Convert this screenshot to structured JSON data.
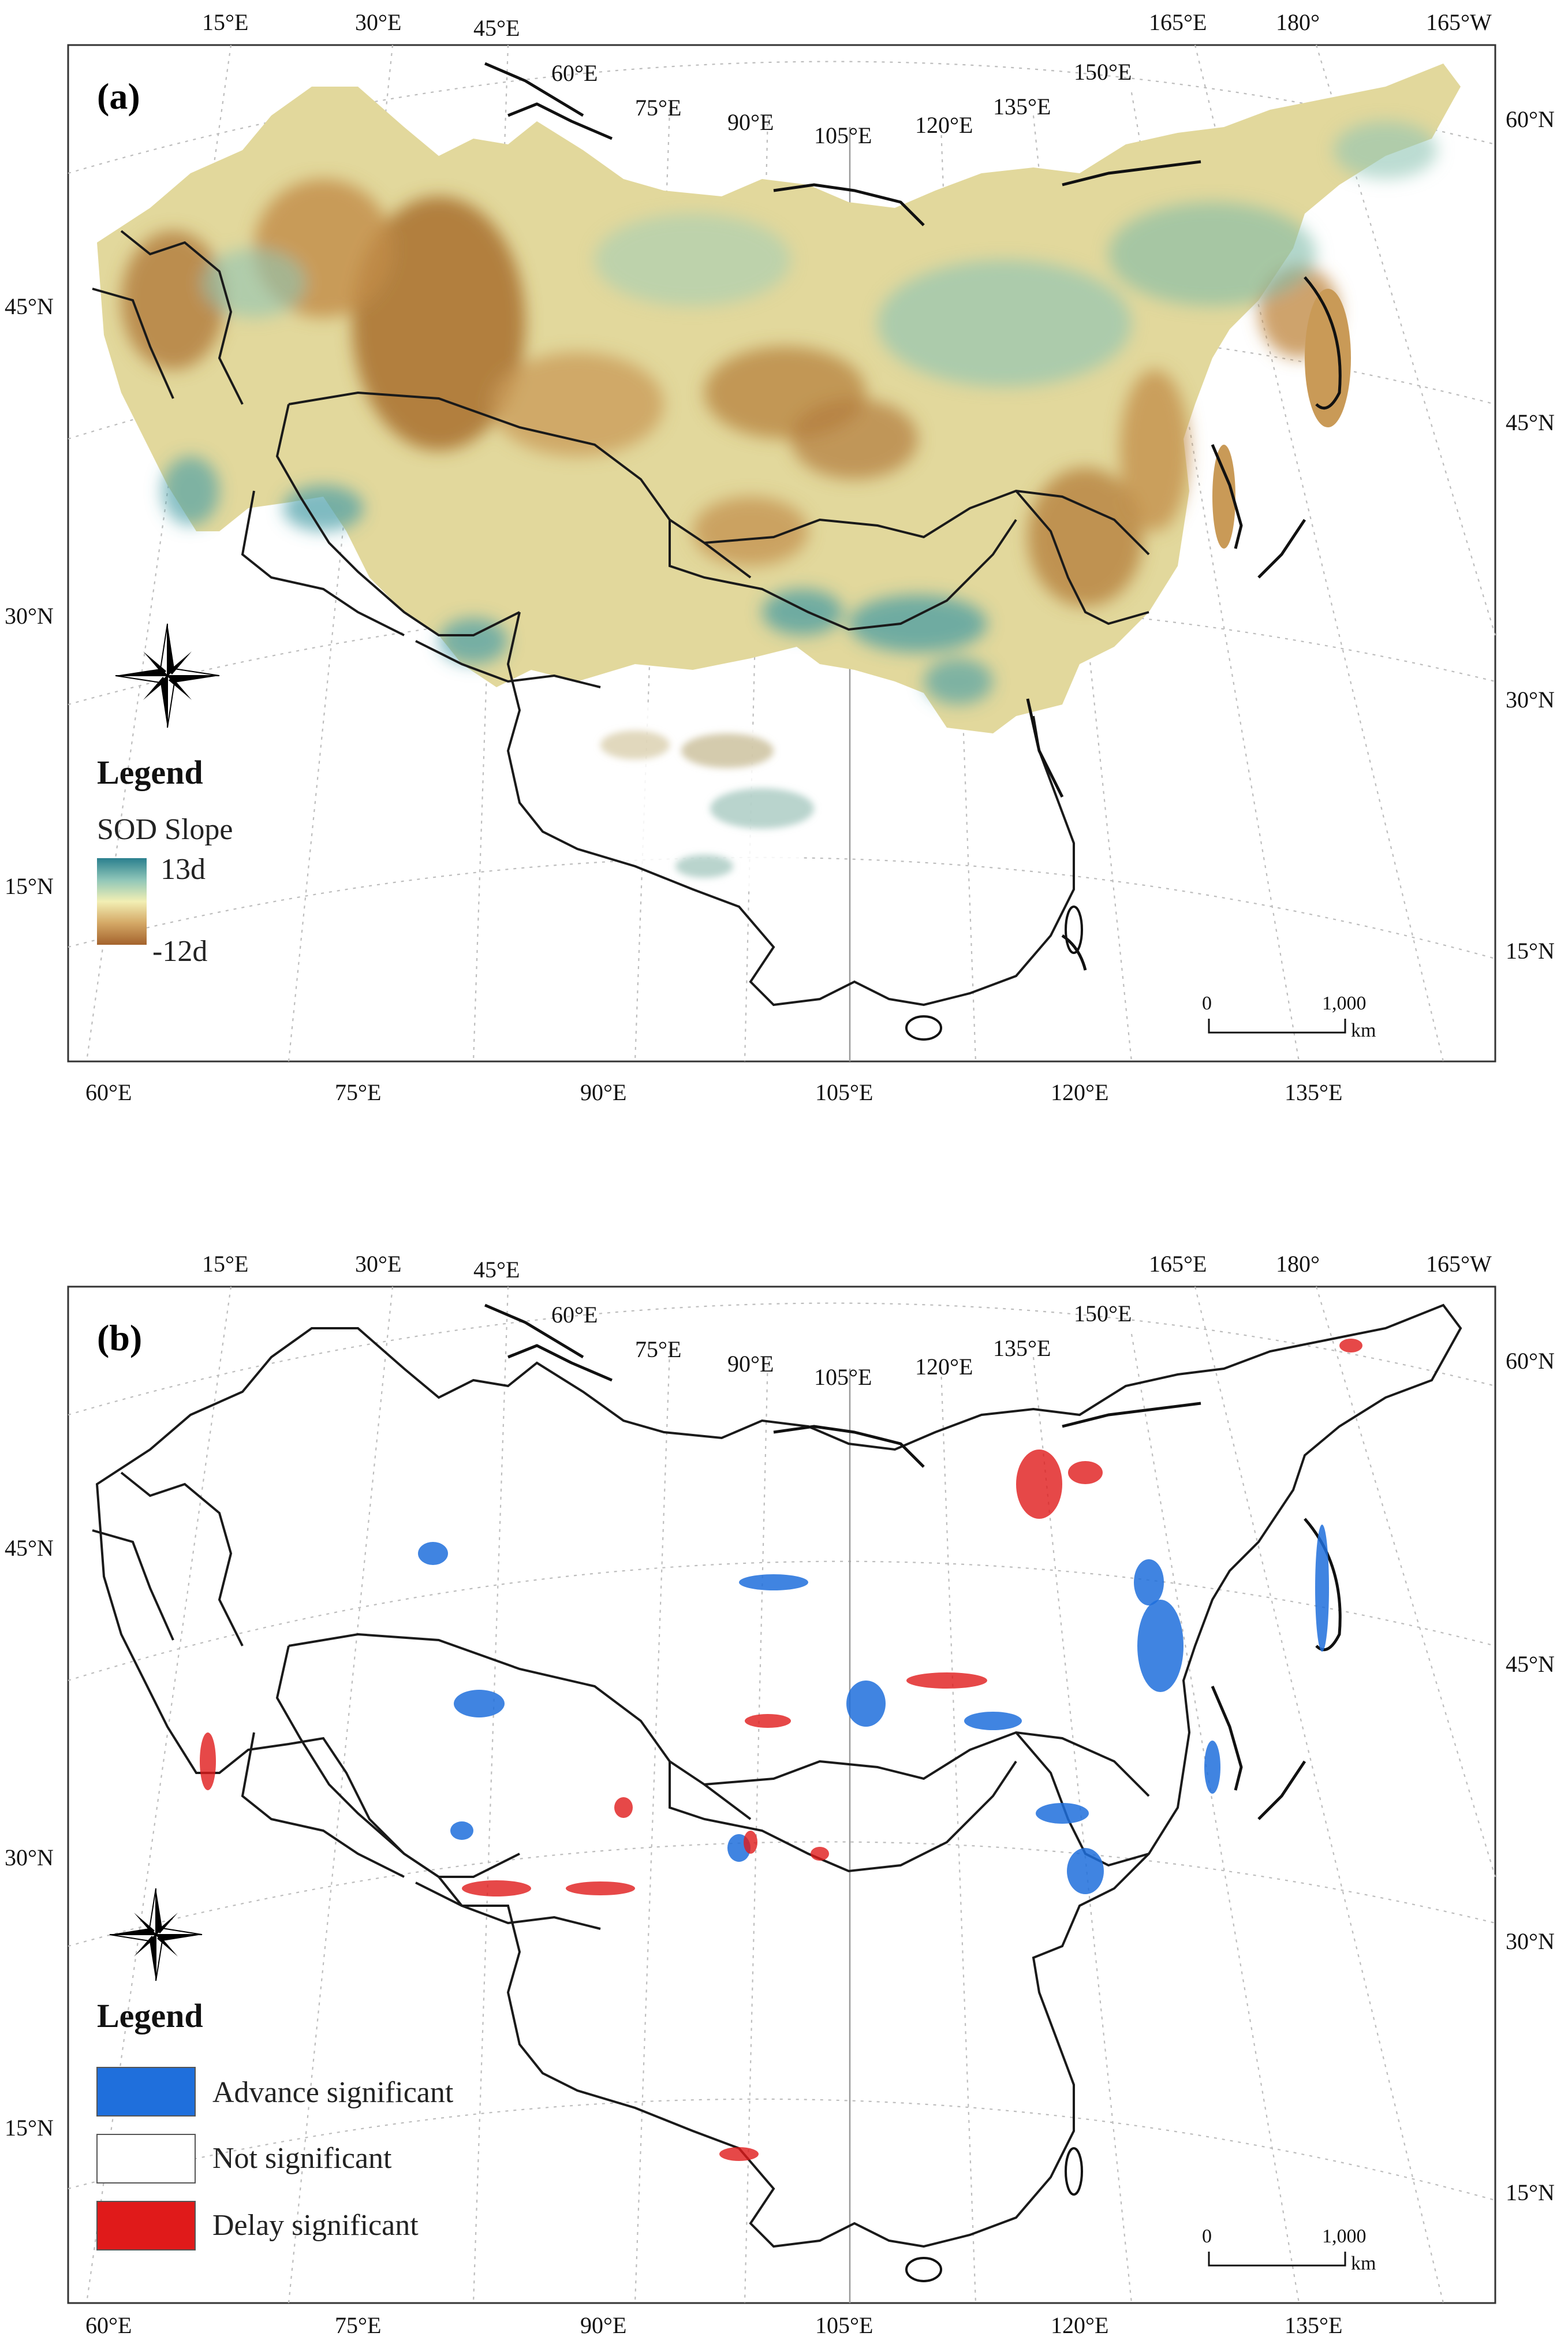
{
  "panels": [
    {
      "label": "(a)",
      "top_ticks": [
        "15°E",
        "30°E",
        "45°E",
        "60°E",
        "75°E",
        "90°E",
        "105°E",
        "120°E",
        "135°E",
        "150°E",
        "165°E",
        "180°",
        "165°W"
      ],
      "bottom_ticks": [
        "60°E",
        "75°E",
        "90°E",
        "105°E",
        "120°E",
        "135°E"
      ],
      "left_ticks": [
        "45°N",
        "30°N",
        "15°N"
      ],
      "right_ticks": [
        "60°N",
        "45°N",
        "30°N",
        "15°N"
      ],
      "legend": {
        "title": "Legend",
        "subtitle": "SOD Slope",
        "max_label": "13d",
        "min_label": "-12d",
        "ramp_colors": [
          "#2a7f8e",
          "#8fc6b8",
          "#f2efb4",
          "#d4a866",
          "#a4632d"
        ]
      },
      "scale": {
        "zero": "0",
        "max": "1,000",
        "unit": "km"
      }
    },
    {
      "label": "(b)",
      "top_ticks": [
        "15°E",
        "30°E",
        "45°E",
        "60°E",
        "75°E",
        "90°E",
        "105°E",
        "120°E",
        "135°E",
        "150°E",
        "165°E",
        "180°",
        "165°W"
      ],
      "bottom_ticks": [
        "60°E",
        "75°E",
        "90°E",
        "105°E",
        "120°E",
        "135°E"
      ],
      "left_ticks": [
        "45°N",
        "30°N",
        "15°N"
      ],
      "right_ticks": [
        "60°N",
        "45°N",
        "30°N",
        "15°N"
      ],
      "legend": {
        "title": "Legend",
        "items": [
          {
            "label": "Advance significant",
            "color": "#1f6fdc"
          },
          {
            "label": "Not significant",
            "color": "#ffffff"
          },
          {
            "label": "Delay significant",
            "color": "#e01a1a"
          }
        ]
      },
      "scale": {
        "zero": "0",
        "max": "1,000",
        "unit": "km"
      }
    }
  ],
  "colors": {
    "advance": "#1f6fdc",
    "delay": "#e01a1a",
    "teal": "#3f98a4",
    "brown": "#b27a3c",
    "cream": "#ece7a6"
  }
}
